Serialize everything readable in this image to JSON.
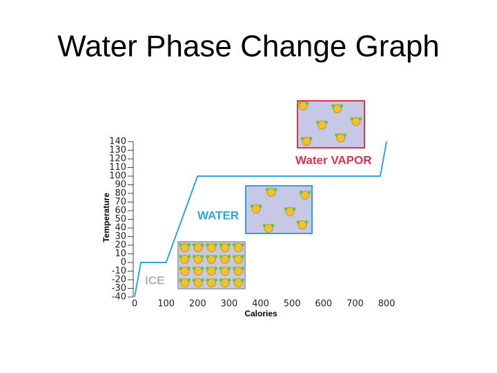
{
  "chart_data": {
    "type": "line",
    "title": "Water Phase Change Graph",
    "x_label": "Calories",
    "y_label": "Temperature",
    "x": [
      0,
      20,
      100,
      200,
      780,
      800
    ],
    "values": [
      -40,
      0,
      0,
      100,
      100,
      140
    ],
    "color": "#2aa6dc",
    "xlim": [
      0,
      800
    ],
    "ylim": [
      -40,
      140
    ],
    "xticks": [
      0,
      100,
      200,
      300,
      400,
      500,
      600,
      700,
      800
    ],
    "yticks": [
      140,
      130,
      120,
      110,
      100,
      90,
      80,
      70,
      60,
      50,
      40,
      30,
      20,
      10,
      0,
      -10,
      -20,
      -30,
      -40
    ],
    "annotations": [
      {
        "text": "ICE",
        "color": "#b4b4b4"
      },
      {
        "text": "WATER",
        "color": "#2aa6dc"
      },
      {
        "text": "Water VAPOR",
        "color": "#d8334a"
      }
    ]
  }
}
